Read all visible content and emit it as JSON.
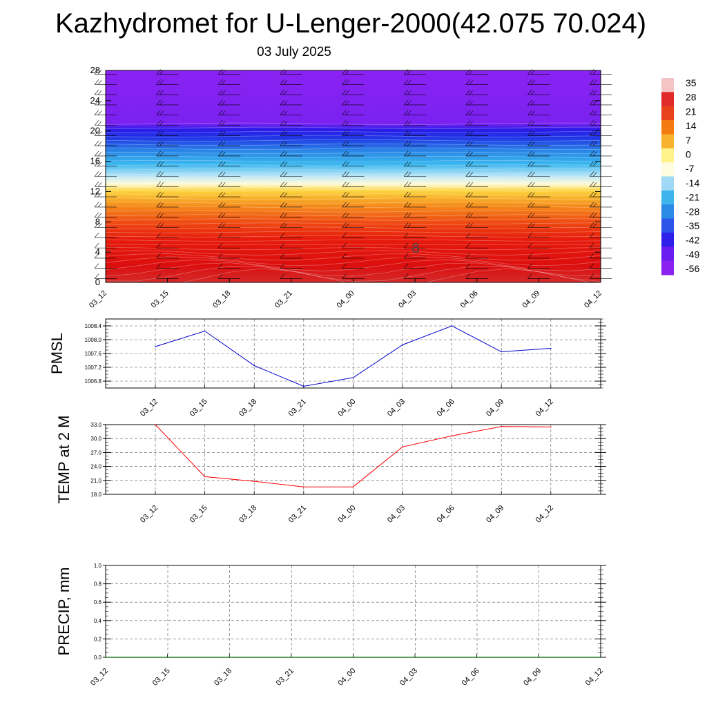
{
  "title": "Kazhydromet for U-Lenger-2000(42.075 70.024)",
  "subtitle": "03 July 2025",
  "chart_data": [
    {
      "type": "heatmap",
      "x_ticks": [
        "03_12",
        "03_15",
        "03_18",
        "03_21",
        "04_00",
        "04_03",
        "04_06",
        "04_09",
        "04_12"
      ],
      "y_ticks": [
        0,
        4,
        8,
        12,
        16,
        20,
        24,
        28
      ],
      "ylim": [
        0,
        28
      ],
      "colorbar_labels": [
        "35",
        "28",
        "21",
        "14",
        "7",
        "0",
        "-7",
        "-14",
        "-21",
        "-28",
        "-35",
        "-42",
        "-49",
        "-56"
      ],
      "colorbar_colors": [
        "#f4c3c3",
        "#e02a2a",
        "#e8421c",
        "#f47a12",
        "#f9b22e",
        "#fff28a",
        "#fffbe0",
        "#9fd9f5",
        "#3fb4ec",
        "#2a8ae6",
        "#2a55e8",
        "#2f1fea",
        "#6a1df0",
        "#8a22f2"
      ],
      "annotation": "8"
    },
    {
      "type": "line",
      "ylabel": "PMSL",
      "x": [
        "03_12",
        "03_15",
        "03_18",
        "03_21",
        "04_00",
        "04_03",
        "04_06",
        "04_09",
        "04_12"
      ],
      "values": [
        1007.8,
        1008.25,
        1007.25,
        1006.65,
        1006.9,
        1007.85,
        1008.4,
        1007.65,
        1007.75
      ],
      "y_ticks": [
        "1006.8",
        "1007.2",
        "1007.6",
        "1008.0",
        "1008.4"
      ],
      "ylim": [
        1006.6,
        1008.6
      ],
      "color": "#0000cc"
    },
    {
      "type": "line",
      "ylabel": "TEMP at 2 M",
      "x": [
        "03_12",
        "03_15",
        "03_18",
        "03_21",
        "04_00",
        "04_03",
        "04_06",
        "04_09",
        "04_12"
      ],
      "values": [
        33.0,
        21.8,
        20.8,
        19.6,
        19.6,
        28.2,
        30.6,
        32.6,
        32.5
      ],
      "y_ticks": [
        "18.0",
        "21.0",
        "24.0",
        "27.0",
        "30.0",
        "33.0"
      ],
      "ylim": [
        18.0,
        33.0
      ],
      "color": "#ff0000"
    },
    {
      "type": "line",
      "ylabel": "PRECIP, mm",
      "x_ticks": [
        "03_12",
        "03_15",
        "03_18",
        "03_21",
        "04_00",
        "04_03",
        "04_06",
        "04_09",
        "04_12"
      ],
      "values": [
        0,
        0,
        0,
        0,
        0,
        0,
        0,
        0,
        0
      ],
      "y_ticks": [
        "0.0",
        "0.2",
        "0.4",
        "0.6",
        "0.8",
        "1.0"
      ],
      "ylim": [
        0,
        1
      ],
      "color": "#006600"
    }
  ]
}
